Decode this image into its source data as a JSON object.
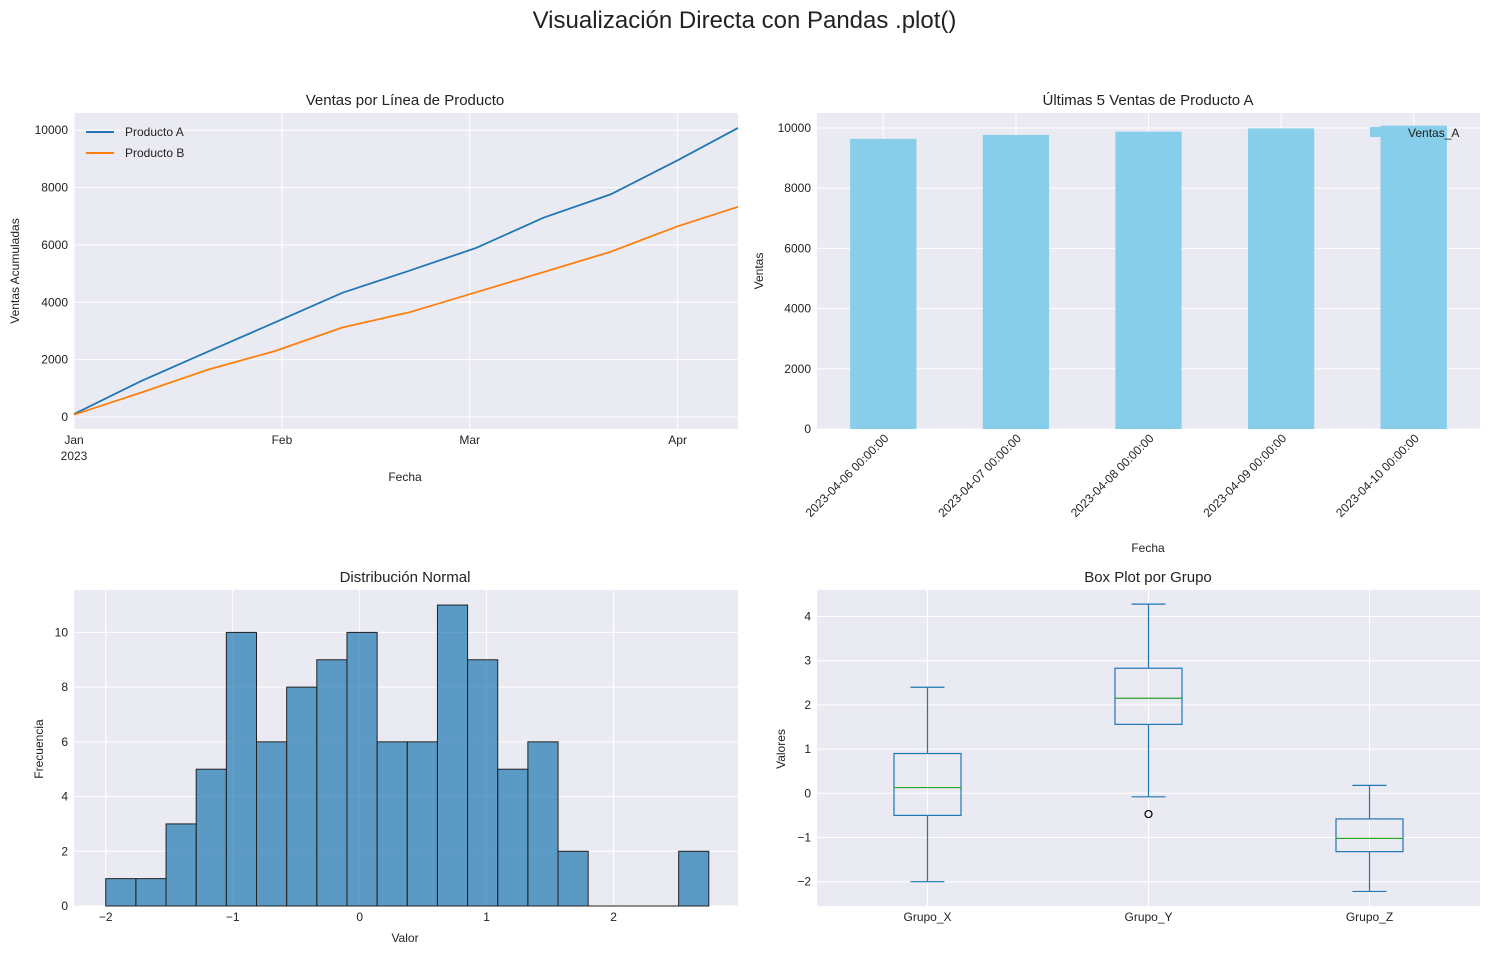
{
  "suptitle": "Visualización Directa con Pandas .plot()",
  "chart_data": [
    {
      "type": "line",
      "title": "Ventas por Línea de Producto",
      "xlabel": "Fecha",
      "ylabel": "Ventas Acumuladas",
      "x_range": [
        "2023-01-01",
        "2023-04-10"
      ],
      "ylim": [
        -420,
        10600
      ],
      "yticks": [
        "0",
        "2000",
        "4000",
        "6000",
        "8000",
        "10000"
      ],
      "ytick_values": [
        0,
        2000,
        4000,
        6000,
        8000,
        10000
      ],
      "xticks": [
        {
          "label": "Jan",
          "sublabel": "2023",
          "date": "2023-01-01"
        },
        {
          "label": "Feb",
          "sublabel": "",
          "date": "2023-02-01"
        },
        {
          "label": "Mar",
          "sublabel": "",
          "date": "2023-03-01"
        },
        {
          "label": "Apr",
          "sublabel": "",
          "date": "2023-04-01"
        }
      ],
      "legend_position": "upper-left",
      "grid": true,
      "series": [
        {
          "name": "Producto A",
          "color": "#1f77b4",
          "x": [
            "2023-01-01",
            "2023-01-11",
            "2023-01-21",
            "2023-01-31",
            "2023-02-10",
            "2023-02-20",
            "2023-03-02",
            "2023-03-12",
            "2023-03-22",
            "2023-04-01",
            "2023-04-10"
          ],
          "y": [
            100,
            1250,
            2280,
            3300,
            4330,
            5100,
            5900,
            6950,
            7760,
            8950,
            10080
          ]
        },
        {
          "name": "Producto B",
          "color": "#ff7f0e",
          "x": [
            "2023-01-01",
            "2023-01-11",
            "2023-01-21",
            "2023-01-31",
            "2023-02-10",
            "2023-02-20",
            "2023-03-02",
            "2023-03-12",
            "2023-03-22",
            "2023-04-01",
            "2023-04-10"
          ],
          "y": [
            80,
            850,
            1650,
            2300,
            3120,
            3650,
            4350,
            5050,
            5760,
            6650,
            7330
          ]
        }
      ]
    },
    {
      "type": "bar",
      "title": "Últimas 5 Ventas de Producto A",
      "xlabel": "Fecha",
      "ylabel": "Ventas",
      "ylim": [
        0,
        10500
      ],
      "yticks": [
        "0",
        "2000",
        "4000",
        "6000",
        "8000",
        "10000"
      ],
      "ytick_values": [
        0,
        2000,
        4000,
        6000,
        8000,
        10000
      ],
      "categories": [
        "2023-04-06 00:00:00",
        "2023-04-07 00:00:00",
        "2023-04-08 00:00:00",
        "2023-04-09 00:00:00",
        "2023-04-10 00:00:00"
      ],
      "series": [
        {
          "name": "Ventas_A",
          "color": "#87ceeb",
          "values": [
            9640,
            9770,
            9880,
            9990,
            10080
          ]
        }
      ],
      "legend_position": "upper-right",
      "grid": true
    },
    {
      "type": "bar",
      "subtype": "histogram",
      "title": "Distribución Normal",
      "xlabel": "Valor",
      "ylabel": "Frecuencia",
      "xlim": [
        -2.25,
        2.98
      ],
      "ylim": [
        0,
        11.55
      ],
      "xticks": [
        "−2",
        "−1",
        "0",
        "1",
        "2"
      ],
      "xtick_values": [
        -2,
        -1,
        0,
        1,
        2
      ],
      "yticks": [
        "0",
        "2",
        "4",
        "6",
        "8",
        "10"
      ],
      "ytick_values": [
        0,
        2,
        4,
        6,
        8,
        10
      ],
      "bin_start": -2.0,
      "bin_width": 0.2375,
      "counts": [
        1,
        1,
        3,
        5,
        10,
        6,
        8,
        9,
        10,
        6,
        6,
        11,
        9,
        5,
        6,
        2,
        0,
        0,
        0,
        2
      ],
      "color": "#1f77b4",
      "grid": true
    },
    {
      "type": "box",
      "title": "Box Plot por Grupo",
      "ylabel": "Valores",
      "ylim": [
        -2.55,
        4.6
      ],
      "yticks": [
        "−2",
        "−1",
        "0",
        "1",
        "2",
        "3",
        "4"
      ],
      "ytick_values": [
        -2,
        -1,
        0,
        1,
        2,
        3,
        4
      ],
      "categories": [
        "Grupo_X",
        "Grupo_Y",
        "Grupo_Z"
      ],
      "boxes": [
        {
          "whislo": -2.0,
          "q1": -0.5,
          "med": 0.13,
          "q3": 0.9,
          "whishi": 2.4,
          "fliers": []
        },
        {
          "whislo": -0.08,
          "q1": 1.56,
          "med": 2.15,
          "q3": 2.83,
          "whishi": 4.28,
          "fliers": [
            -0.47
          ]
        },
        {
          "whislo": -2.22,
          "q1": -1.32,
          "med": -1.02,
          "q3": -0.58,
          "whishi": 0.18,
          "fliers": []
        }
      ],
      "colors": {
        "box": "#1f77b4",
        "median": "#2ca02c"
      },
      "grid": true
    }
  ]
}
